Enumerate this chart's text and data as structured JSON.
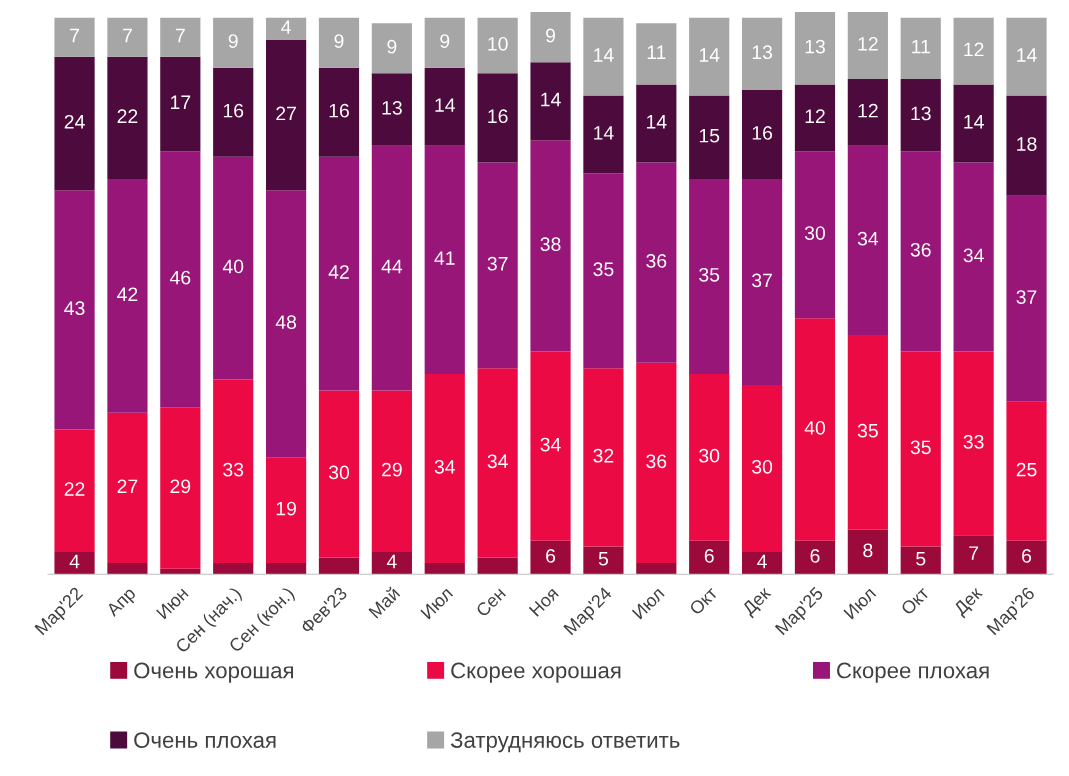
{
  "chart_data": {
    "type": "bar",
    "stacked": true,
    "legend": "bottom",
    "grid": false,
    "tick_labels": "x",
    "categories": [
      "Мар'22",
      "Апр",
      "Июн",
      "Сен (нач.)",
      "Сен (кон.)",
      "Фев'23",
      "Май",
      "Июл",
      "Сен",
      "Ноя",
      "Мар'24",
      "Июл",
      "Окт",
      "Дек",
      "Мар'25",
      "Июл",
      "Окт",
      "Дек",
      "Мар'26"
    ],
    "series": [
      {
        "name": "Очень хорошая",
        "color": "#9b0a3a",
        "values": [
          4,
          2,
          1,
          2,
          2,
          3,
          4,
          2,
          3,
          6,
          5,
          2,
          6,
          4,
          6,
          8,
          5,
          7,
          6
        ],
        "value_labels": [
          "4",
          null,
          null,
          null,
          null,
          null,
          "4",
          null,
          null,
          "6",
          "5",
          null,
          "6",
          "4",
          "6",
          "8",
          "5",
          "7",
          "6"
        ]
      },
      {
        "name": "Скорее хорошая",
        "color": "#ec0a44",
        "values": [
          22,
          27,
          29,
          33,
          19,
          30,
          29,
          34,
          34,
          34,
          32,
          36,
          30,
          30,
          40,
          35,
          35,
          33,
          25
        ],
        "value_labels": [
          "22",
          "27",
          "29",
          "33",
          "19",
          "30",
          "29",
          "34",
          "34",
          "34",
          "32",
          "36",
          "30",
          "30",
          "40",
          "35",
          "35",
          "33",
          "25"
        ]
      },
      {
        "name": "Скорее плохая",
        "color": "#971677",
        "values": [
          43,
          42,
          46,
          40,
          48,
          42,
          44,
          41,
          37,
          38,
          35,
          36,
          35,
          37,
          30,
          34,
          36,
          34,
          37
        ],
        "value_labels": [
          "43",
          "42",
          "46",
          "40",
          "48",
          "42",
          "44",
          "41",
          "37",
          "38",
          "35",
          "36",
          "35",
          "37",
          "30",
          "34",
          "36",
          "34",
          "37"
        ]
      },
      {
        "name": "Очень плохая",
        "color": "#4d0a3c",
        "values": [
          24,
          22,
          17,
          16,
          27,
          16,
          13,
          14,
          16,
          14,
          14,
          14,
          15,
          16,
          12,
          12,
          13,
          14,
          18
        ],
        "value_labels": [
          "24",
          "22",
          "17",
          "16",
          "27",
          "16",
          "13",
          "14",
          "16",
          "14",
          "14",
          "14",
          "15",
          "16",
          "12",
          "12",
          "13",
          "14",
          "18"
        ]
      },
      {
        "name": "Затрудняюсь ответить",
        "color": "#a6a6a6",
        "values": [
          7,
          7,
          7,
          9,
          4,
          9,
          9,
          9,
          10,
          9,
          14,
          11,
          14,
          13,
          13,
          12,
          11,
          12,
          14
        ],
        "value_labels": [
          "7",
          "7",
          "7",
          "9",
          "4",
          "9",
          "9",
          "9",
          "10",
          "9",
          "14",
          "11",
          "14",
          "13",
          "13",
          "12",
          "11",
          "12",
          "14"
        ]
      }
    ]
  }
}
